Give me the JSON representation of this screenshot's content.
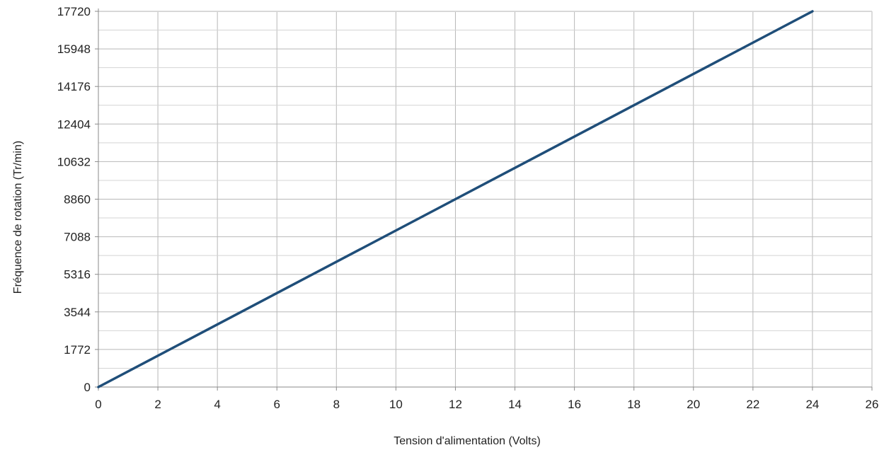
{
  "chart_data": {
    "type": "line",
    "title": "",
    "xlabel": "Tension d'alimentation (Volts)",
    "ylabel": "Fréquence de rotation (Tr/min)",
    "xlim": [
      0,
      26
    ],
    "ylim": [
      0,
      17720
    ],
    "xticks": [
      0,
      2,
      4,
      6,
      8,
      10,
      12,
      14,
      16,
      18,
      20,
      22,
      24,
      26
    ],
    "yticks": [
      0,
      1772,
      3544,
      5316,
      7088,
      8860,
      10632,
      12404,
      14176,
      15948,
      17720
    ],
    "ytick_labels": [
      "0",
      "1772",
      "3544",
      "5316",
      "7088",
      "8860",
      "10632",
      "12404",
      "14176",
      "15948",
      "17720"
    ],
    "grid": true,
    "legend": "none",
    "series": [
      {
        "x": [
          0,
          24
        ],
        "y": [
          0,
          17720
        ],
        "color": "#1f4e79"
      }
    ]
  }
}
